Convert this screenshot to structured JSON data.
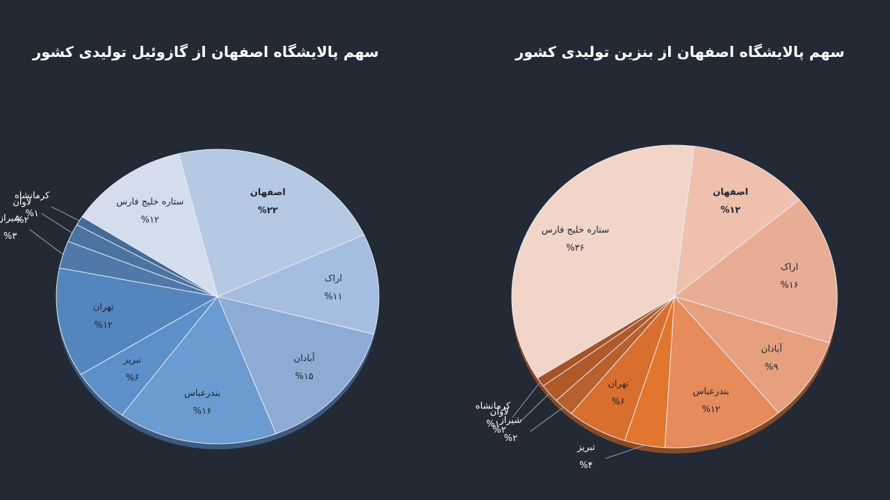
{
  "chart_data": [
    {
      "type": "pie",
      "title": "سهم پالایشگاه اصفهان از گازوئیل تولیدی کشور",
      "categories": [
        "اصفهان",
        "اراک",
        "آبادان",
        "بندرعباس",
        "تبریز",
        "تهران",
        "شیراز",
        "لاوان",
        "کرمانشاه",
        "ستاره خلیج فارس"
      ],
      "values": [
        22,
        11,
        15,
        16,
        6,
        12,
        3,
        2,
        1,
        12
      ],
      "value_labels": [
        "%۲۲",
        "%۱۱",
        "%۱۵",
        "%۱۶",
        "%۶",
        "%۱۲",
        "%۳",
        "%۲",
        "%۱",
        "%۱۲"
      ],
      "colors": [
        "#b6c9e3",
        "#a5bde0",
        "#8eacd3",
        "#6b9bd0",
        "#5d8fc8",
        "#5486bd",
        "#4f79a8",
        "#4b73a0",
        "#456b96",
        "#d3ddee"
      ]
    },
    {
      "type": "pie",
      "title": "سهم پالایشگاه اصفهان از بنزین تولیدی کشور",
      "categories": [
        "اصفهان",
        "اراک",
        "آبادان",
        "بندرعباس",
        "تبریز",
        "تهران",
        "شیراز",
        "لاوان",
        "کرمانشاه",
        "ستاره خلیج فارس"
      ],
      "values": [
        12,
        16,
        9,
        12,
        4,
        6,
        2,
        2,
        1,
        36
      ],
      "value_labels": [
        "%۱۲",
        "%۱۶",
        "%۹",
        "%۱۲",
        "%۴",
        "%۶",
        "%۲",
        "%۲",
        "%۱",
        "%۳۶"
      ],
      "colors": [
        "#eec0ad",
        "#e9ad95",
        "#e6a07f",
        "#e58b5c",
        "#e2762e",
        "#d96f2f",
        "#b7612e",
        "#b05a2a",
        "#a65228",
        "#f2d5c9"
      ]
    }
  ]
}
